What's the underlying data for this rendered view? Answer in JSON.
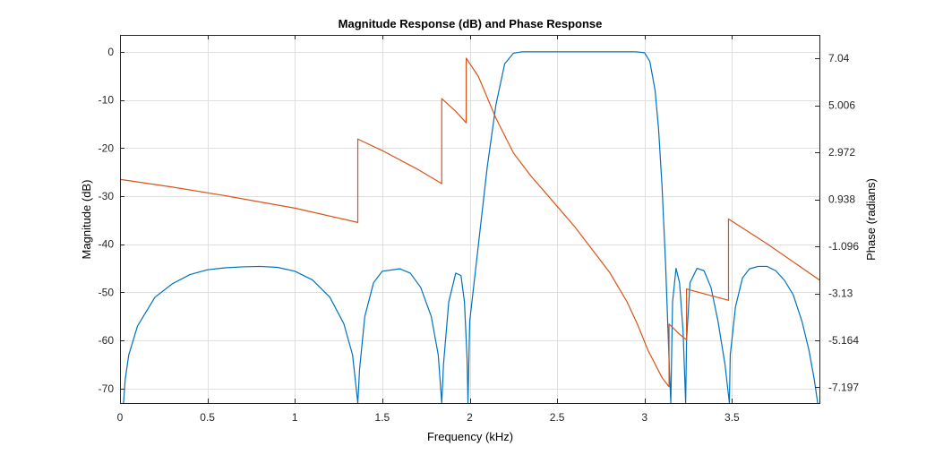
{
  "chart_data": {
    "type": "line",
    "title": "Magnitude Response (dB) and Phase Response",
    "xlabel": "Frequency (kHz)",
    "ylabel_left": "Magnitude (dB)",
    "ylabel_right": "Phase (radians)",
    "xlim": [
      0,
      4
    ],
    "ylim_left": [
      -73,
      3.5
    ],
    "ylim_right": [
      -7.877,
      8.057
    ],
    "x_ticks": [
      "0",
      "0.5",
      "1",
      "1.5",
      "2",
      "2.5",
      "3",
      "3.5"
    ],
    "x_tick_values": [
      0,
      0.5,
      1,
      1.5,
      2,
      2.5,
      3,
      3.5
    ],
    "y_left_ticks": [
      "0",
      "-10",
      "-20",
      "-30",
      "-40",
      "-50",
      "-60",
      "-70"
    ],
    "y_left_tick_values": [
      0,
      -10,
      -20,
      -30,
      -40,
      -50,
      -60,
      -70
    ],
    "y_right_ticks": [
      "7.04",
      "5.006",
      "2.972",
      "0.938",
      "-1.096",
      "-3.13",
      "-5.164",
      "-7.197"
    ],
    "y_right_tick_values": [
      7.04,
      5.006,
      2.972,
      0.938,
      -1.096,
      -3.13,
      -5.164,
      -7.197
    ],
    "grid": true,
    "series": [
      {
        "axis": "left",
        "color": "#0072bd",
        "x": [
          0.02,
          0.03,
          0.05,
          0.1,
          0.2,
          0.3,
          0.4,
          0.5,
          0.6,
          0.7,
          0.8,
          0.9,
          1.0,
          1.1,
          1.2,
          1.28,
          1.33,
          1.36,
          1.37,
          1.4,
          1.45,
          1.5,
          1.6,
          1.66,
          1.72,
          1.78,
          1.82,
          1.84,
          1.85,
          1.88,
          1.92,
          1.95,
          1.97,
          1.985,
          1.99,
          2.0,
          2.05,
          2.1,
          2.15,
          2.2,
          2.25,
          2.3,
          2.5,
          2.7,
          2.9,
          2.95,
          3.0,
          3.03,
          3.06,
          3.08,
          3.1,
          3.12,
          3.14,
          3.15,
          3.16,
          3.18,
          3.2,
          3.22,
          3.235,
          3.24,
          3.26,
          3.3,
          3.34,
          3.38,
          3.42,
          3.46,
          3.485,
          3.49,
          3.52,
          3.56,
          3.6,
          3.65,
          3.7,
          3.75,
          3.8,
          3.85,
          3.9,
          3.94,
          3.97,
          3.99
        ],
        "y": [
          -73,
          -68,
          -63,
          -57,
          -51,
          -48.2,
          -46.3,
          -45.3,
          -44.9,
          -44.7,
          -44.6,
          -44.8,
          -45.6,
          -47.4,
          -51,
          -56.5,
          -63,
          -73,
          -66,
          -55,
          -48,
          -45.6,
          -45.1,
          -46,
          -49,
          -55,
          -63,
          -73,
          -65,
          -52,
          -46,
          -46.5,
          -52,
          -64,
          -73,
          -56,
          -40,
          -24,
          -11,
          -2.5,
          -0.3,
          0,
          0,
          0,
          0,
          0,
          -0.2,
          -2,
          -8,
          -16,
          -28,
          -44,
          -64,
          -73,
          -52,
          -45,
          -48,
          -58,
          -73,
          -60,
          -48,
          -45,
          -45.5,
          -49,
          -56,
          -65,
          -73,
          -63,
          -53,
          -47,
          -45.1,
          -44.6,
          -44.6,
          -45.5,
          -47.5,
          -50.5,
          -56,
          -62,
          -68,
          -73
        ]
      },
      {
        "axis": "right",
        "color": "#d95319",
        "x": [
          0,
          0.3,
          0.6,
          1.0,
          1.36,
          1.36,
          1.5,
          1.7,
          1.84,
          1.84,
          1.92,
          1.98,
          1.98,
          2.05,
          2.15,
          2.25,
          2.35,
          2.5,
          2.6,
          2.7,
          2.8,
          2.9,
          2.96,
          3.02,
          3.1,
          3.14,
          3.14,
          3.2,
          3.24,
          3.24,
          3.48,
          3.48,
          3.7,
          4.0
        ],
        "y": [
          1.805,
          1.47,
          1.1,
          0.56,
          -0.06,
          3.55,
          3.05,
          2.25,
          1.62,
          5.3,
          4.75,
          4.25,
          7.05,
          6.25,
          4.45,
          2.95,
          1.95,
          0.64,
          -0.24,
          -1.23,
          -2.22,
          -3.5,
          -4.48,
          -5.6,
          -6.78,
          -7.17,
          -4.46,
          -4.9,
          -5.14,
          -2.94,
          -3.43,
          0.09,
          -0.98,
          -2.55
        ]
      }
    ]
  }
}
